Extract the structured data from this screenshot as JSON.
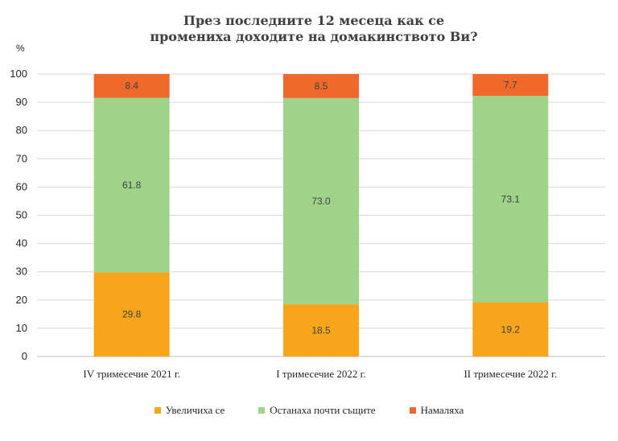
{
  "chart_data": {
    "type": "bar",
    "stacked": true,
    "title": "През последните 12 месеца как се промениха доходите на домакинството Ви?",
    "ylabel": "%",
    "ylim": [
      0,
      100
    ],
    "yticks": [
      0,
      10,
      20,
      30,
      40,
      50,
      60,
      70,
      80,
      90,
      100
    ],
    "categories": [
      "IV тримесечие 2021 г.",
      "I тримесечие 2022 г.",
      "II тримесечие 2022 г."
    ],
    "series": [
      {
        "name": "Увеличиха се",
        "color": "#f7a51b",
        "values": [
          29.8,
          18.5,
          19.2
        ],
        "labels": [
          "29.8",
          "18.5",
          "19.2"
        ]
      },
      {
        "name": "Останаха почти същите",
        "color": "#9fd38a",
        "values": [
          61.8,
          73.0,
          73.1
        ],
        "labels": [
          "61.8",
          "73.0",
          "73.1"
        ]
      },
      {
        "name": "Намаляха",
        "color": "#ef6a2a",
        "values": [
          8.4,
          8.5,
          7.7
        ],
        "labels": [
          "8.4",
          "8.5",
          "7.7"
        ]
      }
    ],
    "grid": true,
    "legend": "bottom"
  }
}
